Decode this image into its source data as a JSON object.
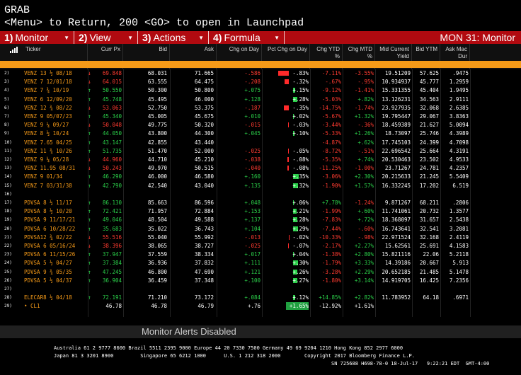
{
  "command": {
    "line1": "GRAB",
    "line2": "<Menu> to Return, 200 <GO> to open in Launchpad"
  },
  "menubar": {
    "items": [
      {
        "num": "1)",
        "label": "Monitor"
      },
      {
        "num": "2)",
        "label": "View"
      },
      {
        "num": "3)",
        "label": "Actions"
      },
      {
        "num": "4)",
        "label": "Formula"
      }
    ],
    "title": "MON 31: Monitor"
  },
  "headers": [
    "Ticker",
    "Curr Px",
    "Bid",
    "Ask",
    "Chg on Day",
    "Pct Chg on Day",
    "Chg YTD %",
    "Chg MTD %",
    "Mid Current Yield",
    "Bid YTM",
    "Ask Mac Dur"
  ],
  "rows": [
    {
      "idx": "2)",
      "ticker": "VENZ 13 ½ 08/18",
      "px": "69.848",
      "pxdir": "neg",
      "bid": "68.031",
      "ask": "71.665",
      "chg": "-.586",
      "chgdir": "neg",
      "pct": "-.83%",
      "pctdir": "neg",
      "ytd": "-7.11%",
      "ytddir": "neg",
      "mtd": "-3.55%",
      "mtddir": "neg",
      "cy": "19.51209",
      "bytm": "57.625",
      "dur": ".9475",
      "bar": -0.6
    },
    {
      "idx": "3)",
      "ticker": "VENZ 7 12/01/18",
      "px": "64.015",
      "pxdir": "neg",
      "bid": "63.555",
      "ask": "64.475",
      "chg": "-.208",
      "chgdir": "neg",
      "pct": "-.32%",
      "pctdir": "neg",
      "ytd": "-.67%",
      "ytddir": "neg",
      "mtd": "-.95%",
      "mtddir": "neg",
      "cy": "10.934937",
      "bytm": "45.777",
      "dur": "1.2959",
      "bar": -0.25
    },
    {
      "idx": "4)",
      "ticker": "VENZ 7 ¾ 10/19",
      "px": "50.550",
      "pxdir": "pos",
      "bid": "50.300",
      "ask": "50.800",
      "chg": "+.075",
      "chgdir": "pos",
      "pct": "+.15%",
      "pctdir": "pos",
      "ytd": "-9.12%",
      "ytddir": "neg",
      "mtd": "-1.41%",
      "mtddir": "neg",
      "cy": "15.331355",
      "bytm": "45.404",
      "dur": "1.9495",
      "bar": 0.1
    },
    {
      "idx": "5)",
      "ticker": "VENZ 6 12/09/20",
      "px": "45.748",
      "pxdir": "pos",
      "bid": "45.495",
      "ask": "46.000",
      "chg": "+.128",
      "chgdir": "pos",
      "pct": "+.28%",
      "pctdir": "pos",
      "ytd": "-5.03%",
      "ytddir": "neg",
      "mtd": "+.82%",
      "mtddir": "pos",
      "cy": "13.126231",
      "bytm": "34.563",
      "dur": "2.9111",
      "bar": 0.25
    },
    {
      "idx": "6)",
      "ticker": "VENZ 12 ¾ 08/22",
      "px": "53.063",
      "pxdir": "neg",
      "bid": "52.750",
      "ask": "53.375",
      "chg": "-.187",
      "chgdir": "neg",
      "pct": "-.35%",
      "pctdir": "neg",
      "ytd": "-14.75%",
      "ytddir": "neg",
      "mtd": "-1.74%",
      "mtddir": "neg",
      "cy": "23.927935",
      "bytm": "32.068",
      "dur": "2.6385",
      "bar": -0.3
    },
    {
      "idx": "7)",
      "ticker": "VENZ 9 05/07/23",
      "px": "45.340",
      "pxdir": "pos",
      "bid": "45.005",
      "ask": "45.675",
      "chg": "+.010",
      "chgdir": "pos",
      "pct": "+.02%",
      "pctdir": "pos",
      "ytd": "-5.67%",
      "ytddir": "neg",
      "mtd": "+1.32%",
      "mtddir": "pos",
      "cy": "19.795447",
      "bytm": "29.067",
      "dur": "3.8363",
      "bar": 0.02
    },
    {
      "idx": "8)",
      "ticker": "VENZ 9 ¼ 09/27",
      "px": "50.048",
      "pxdir": "neg",
      "bid": "49.775",
      "ask": "50.320",
      "chg": "-.015",
      "chgdir": "neg",
      "pct": "-.03%",
      "pctdir": "neg",
      "ytd": "-3.44%",
      "ytddir": "neg",
      "mtd": "-.36%",
      "mtddir": "neg",
      "cy": "18.459389",
      "bytm": "21.627",
      "dur": "5.0094",
      "bar": -0.03
    },
    {
      "idx": "9)",
      "ticker": "VENZ 8 ½ 10/24",
      "px": "44.050",
      "pxdir": "pos",
      "bid": "43.800",
      "ask": "44.300",
      "chg": "+.045",
      "chgdir": "pos",
      "pct": "+.10%",
      "pctdir": "pos",
      "ytd": "-5.33%",
      "ytddir": "neg",
      "mtd": "+1.26%",
      "mtddir": "pos",
      "cy": "18.73097",
      "bytm": "25.746",
      "dur": "4.3989",
      "bar": 0.08
    },
    {
      "idx": "10)",
      "ticker": "VENZ 7.65 04/25",
      "px": "43.147",
      "pxdir": "pos",
      "bid": "42.855",
      "ask": "43.440",
      "chg": "",
      "chgdir": "white",
      "pct": "",
      "pctdir": "white",
      "ytd": "-4.87%",
      "ytddir": "neg",
      "mtd": "+.62%",
      "mtddir": "pos",
      "cy": "17.745103",
      "bytm": "24.399",
      "dur": "4.7098",
      "bar": 0
    },
    {
      "idx": "11)",
      "ticker": "VENZ 11 ¾ 10/26",
      "px": "51.735",
      "pxdir": "pos",
      "bid": "51.470",
      "ask": "52.000",
      "chg": "-.025",
      "chgdir": "neg",
      "pct": "-.05%",
      "pctdir": "neg",
      "ytd": "-8.72%",
      "ytddir": "neg",
      "mtd": "-.51%",
      "mtddir": "neg",
      "cy": "22.696542",
      "bytm": "25.664",
      "dur": "4.3191",
      "bar": -0.04
    },
    {
      "idx": "12)",
      "ticker": "VENZ 9 ¼ 05/28",
      "px": "44.960",
      "pxdir": "neg",
      "bid": "44.710",
      "ask": "45.210",
      "chg": "-.038",
      "chgdir": "neg",
      "pct": "-.08%",
      "pctdir": "neg",
      "ytd": "-5.35%",
      "ytddir": "neg",
      "mtd": "+.74%",
      "mtddir": "pos",
      "cy": "20.530463",
      "bytm": "23.502",
      "dur": "4.9533",
      "bar": -0.07
    },
    {
      "idx": "13)",
      "ticker": "VENZ 11.95 08/31",
      "px": "50.243",
      "pxdir": "neg",
      "bid": "49.970",
      "ask": "50.515",
      "chg": "-.040",
      "chgdir": "neg",
      "pct": "-.08%",
      "pctdir": "neg",
      "ytd": "-11.25%",
      "ytddir": "neg",
      "mtd": "-1.00%",
      "mtddir": "neg",
      "cy": "23.71267",
      "bytm": "24.781",
      "dur": "4.2357",
      "bar": -0.07
    },
    {
      "idx": "14)",
      "ticker": "VENZ 9 01/34",
      "px": "46.290",
      "pxdir": "pos",
      "bid": "46.000",
      "ask": "46.580",
      "chg": "+.160",
      "chgdir": "pos",
      "pct": "+.35%",
      "pctdir": "pos",
      "ytd": "-3.06%",
      "ytddir": "neg",
      "mtd": "+2.30%",
      "mtddir": "pos",
      "cy": "20.215633",
      "bytm": "21.245",
      "dur": "5.5409",
      "bar": 0.3
    },
    {
      "idx": "15)",
      "ticker": "VENZ 7 03/31/38",
      "px": "42.790",
      "pxdir": "pos",
      "bid": "42.540",
      "ask": "43.040",
      "chg": "+.135",
      "chgdir": "pos",
      "pct": "+.32%",
      "pctdir": "pos",
      "ytd": "-1.90%",
      "ytddir": "neg",
      "mtd": "+1.57%",
      "mtddir": "pos",
      "cy": "16.332245",
      "bytm": "17.202",
      "dur": "6.519",
      "bar": 0.28
    },
    {
      "idx": "16)",
      "ticker": "",
      "px": "",
      "pxdir": "white",
      "bid": "",
      "ask": "",
      "chg": "",
      "chgdir": "white",
      "pct": "",
      "pctdir": "white",
      "ytd": "",
      "ytddir": "white",
      "mtd": "",
      "mtddir": "white",
      "cy": "",
      "bytm": "",
      "dur": "",
      "bar": 0
    },
    {
      "idx": "17)",
      "ticker": "PDVSA 8 ½ 11/17",
      "px": "86.130",
      "pxdir": "pos",
      "bid": "85.663",
      "ask": "86.596",
      "chg": "+.048",
      "chgdir": "pos",
      "pct": "+.06%",
      "pctdir": "pos",
      "ytd": "+7.78%",
      "ytddir": "pos",
      "mtd": "-1.24%",
      "mtddir": "neg",
      "cy": "9.871267",
      "bytm": "68.211",
      "dur": ".2806",
      "bar": 0.05
    },
    {
      "idx": "18)",
      "ticker": "PDVSA 8 ½ 10/20",
      "px": "72.421",
      "pxdir": "pos",
      "bid": "71.957",
      "ask": "72.884",
      "chg": "+.153",
      "chgdir": "pos",
      "pct": "+.21%",
      "pctdir": "pos",
      "ytd": "-1.99%",
      "ytddir": "neg",
      "mtd": "+.60%",
      "mtddir": "pos",
      "cy": "11.741061",
      "bytm": "20.732",
      "dur": "1.3577",
      "bar": 0.18
    },
    {
      "idx": "19)",
      "ticker": "PDVSA 9 11/17/21",
      "px": "49.046",
      "pxdir": "pos",
      "bid": "48.504",
      "ask": "49.588",
      "chg": "+.137",
      "chgdir": "pos",
      "pct": "+.28%",
      "pctdir": "pos",
      "ytd": "-7.83%",
      "ytddir": "neg",
      "mtd": "+.72%",
      "mtddir": "pos",
      "cy": "18.368097",
      "bytm": "31.657",
      "dur": "2.5438",
      "bar": 0.25
    },
    {
      "idx": "20)",
      "ticker": "PDVSA 6 10/28/22",
      "px": "35.683",
      "pxdir": "pos",
      "bid": "35.022",
      "ask": "36.743",
      "chg": "+.104",
      "chgdir": "pos",
      "pct": "+.29%",
      "pctdir": "pos",
      "ytd": "-7.44%",
      "ytddir": "neg",
      "mtd": "-.60%",
      "mtddir": "neg",
      "cy": "16.743641",
      "bytm": "32.541",
      "dur": "3.2081",
      "bar": 0.26
    },
    {
      "idx": "21)",
      "ticker": "PDVSA12 ¾ 02/22",
      "px": "55.516",
      "pxdir": "neg",
      "bid": "55.040",
      "ask": "55.992",
      "chg": "-.013",
      "chgdir": "neg",
      "pct": "-.02%",
      "pctdir": "neg",
      "ytd": "-10.33%",
      "ytddir": "neg",
      "mtd": "-.98%",
      "mtddir": "neg",
      "cy": "22.971524",
      "bytm": "32.168",
      "dur": "2.4119",
      "bar": -0.02
    },
    {
      "idx": "22)",
      "ticker": "PDVSA 6 05/16/24",
      "px": "38.396",
      "pxdir": "neg",
      "bid": "38.065",
      "ask": "38.727",
      "chg": "-.025",
      "chgdir": "neg",
      "pct": "-.07%",
      "pctdir": "neg",
      "ytd": "-2.17%",
      "ytddir": "neg",
      "mtd": "+2.27%",
      "mtddir": "pos",
      "cy": "15.62561",
      "bytm": "25.691",
      "dur": "4.1583",
      "bar": -0.05
    },
    {
      "idx": "23)",
      "ticker": "PDVSA 6 11/15/26",
      "px": "37.947",
      "pxdir": "pos",
      "bid": "37.559",
      "ask": "38.334",
      "chg": "+.017",
      "chgdir": "pos",
      "pct": "+.04%",
      "pctdir": "pos",
      "ytd": "-1.38%",
      "ytddir": "neg",
      "mtd": "+2.80%",
      "mtddir": "pos",
      "cy": "15.821116",
      "bytm": "22.06",
      "dur": "5.2118",
      "bar": 0.04
    },
    {
      "idx": "24)",
      "ticker": "PDVSA 5 ½ 04/27",
      "px": "37.384",
      "pxdir": "pos",
      "bid": "36.936",
      "ask": "37.832",
      "chg": "+.111",
      "chgdir": "pos",
      "pct": "+.30%",
      "pctdir": "pos",
      "ytd": "-1.79%",
      "ytddir": "neg",
      "mtd": "+3.33%",
      "mtddir": "pos",
      "cy": "14.39186",
      "bytm": "20.667",
      "dur": "5.913",
      "bar": 0.27
    },
    {
      "idx": "25)",
      "ticker": "PDVSA 9 ¾ 05/35",
      "px": "47.245",
      "pxdir": "pos",
      "bid": "46.800",
      "ask": "47.690",
      "chg": "+.121",
      "chgdir": "pos",
      "pct": "+.26%",
      "pctdir": "pos",
      "ytd": "-3.28%",
      "ytddir": "neg",
      "mtd": "+2.29%",
      "mtddir": "pos",
      "cy": "20.652185",
      "bytm": "21.485",
      "dur": "5.1478",
      "bar": 0.23
    },
    {
      "idx": "26)",
      "ticker": "PDVSA 5 ½ 04/37",
      "px": "36.904",
      "pxdir": "pos",
      "bid": "36.459",
      "ask": "37.348",
      "chg": "+.100",
      "chgdir": "pos",
      "pct": "+.27%",
      "pctdir": "pos",
      "ytd": "-1.80%",
      "ytddir": "neg",
      "mtd": "+3.14%",
      "mtddir": "pos",
      "cy": "14.919705",
      "bytm": "16.425",
      "dur": "7.2356",
      "bar": 0.24
    },
    {
      "idx": "27)",
      "ticker": "",
      "px": "",
      "pxdir": "white",
      "bid": "",
      "ask": "",
      "chg": "",
      "chgdir": "white",
      "pct": "",
      "pctdir": "white",
      "ytd": "",
      "ytddir": "white",
      "mtd": "",
      "mtddir": "white",
      "cy": "",
      "bytm": "",
      "dur": "",
      "bar": 0
    },
    {
      "idx": "28)",
      "ticker": "ELECAR8 ½ 04/18",
      "px": "72.191",
      "pxdir": "pos",
      "bid": "71.210",
      "ask": "73.172",
      "chg": "+.084",
      "chgdir": "pos",
      "pct": "+.12%",
      "pctdir": "pos",
      "ytd": "+14.85%",
      "ytddir": "pos",
      "mtd": "+2.82%",
      "mtddir": "pos",
      "cy": "11.783952",
      "bytm": "64.18",
      "dur": ".6971",
      "bar": 0.11
    },
    {
      "idx": "29)",
      "ticker": "• CL1",
      "px": "46.78",
      "pxdir": "white",
      "bid": "46.78",
      "ask": "46.79",
      "chg": "+.76",
      "chgdir": "white",
      "pct": "+1.65%",
      "pctdir": "hl",
      "ytd": "-12.92%",
      "ytddir": "white",
      "mtd": "+1.61%",
      "mtddir": "white",
      "cy": "",
      "bytm": "",
      "dur": "",
      "bar": 0
    }
  ],
  "alerts": "Monitor Alerts Disabled",
  "footer": {
    "line1": "Australia 61 2 9777 8600 Brazil 5511 2395 9000 Europe 44 20 7330 7500 Germany 49 69 9204 1210 Hong Kong 852 2977 6000",
    "line2": "Japan 81 3 3201 8900         Singapore 65 6212 1000      U.S. 1 212 318 2000        Copyright 2017 Bloomberg Finance L.P.",
    "line3": "SN 725688 H698-78-0 18-Jul-17   9:22:21 EDT  GMT-4:00"
  },
  "colors": {
    "accent": "#b10a10",
    "orange": "#f59a18",
    "positive": "#2bd14a",
    "negative": "#ff3b30"
  }
}
